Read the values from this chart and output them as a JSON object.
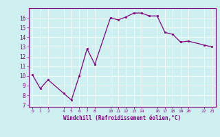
{
  "x": [
    0,
    1,
    2,
    4,
    5,
    6,
    7,
    8,
    10,
    11,
    12,
    13,
    14,
    15,
    16,
    17,
    18,
    19,
    20,
    22,
    23
  ],
  "y": [
    10.1,
    8.7,
    9.6,
    8.2,
    7.5,
    10.0,
    12.8,
    11.2,
    16.0,
    15.8,
    16.1,
    16.5,
    16.5,
    16.2,
    16.2,
    14.5,
    14.3,
    13.5,
    13.6,
    13.2,
    13.0
  ],
  "xticks": [
    0,
    1,
    2,
    4,
    5,
    6,
    7,
    8,
    10,
    11,
    12,
    13,
    14,
    16,
    17,
    18,
    19,
    20,
    22,
    23
  ],
  "xtick_labels": [
    "0",
    "1",
    "2",
    "4",
    "5",
    "6",
    "7",
    "8",
    "10",
    "11",
    "12",
    "13",
    "14",
    "16",
    "17",
    "18",
    "19",
    "20",
    "22",
    "23"
  ],
  "yticks": [
    7,
    8,
    9,
    10,
    11,
    12,
    13,
    14,
    15,
    16
  ],
  "xlabel": "Windchill (Refroidissement éolien,°C)",
  "line_color": "#800080",
  "marker_color": "#800080",
  "bg_color": "#cff0f0",
  "grid_color": "#aadddd",
  "xlim": [
    -0.5,
    23.5
  ],
  "ylim": [
    6.8,
    17.0
  ]
}
